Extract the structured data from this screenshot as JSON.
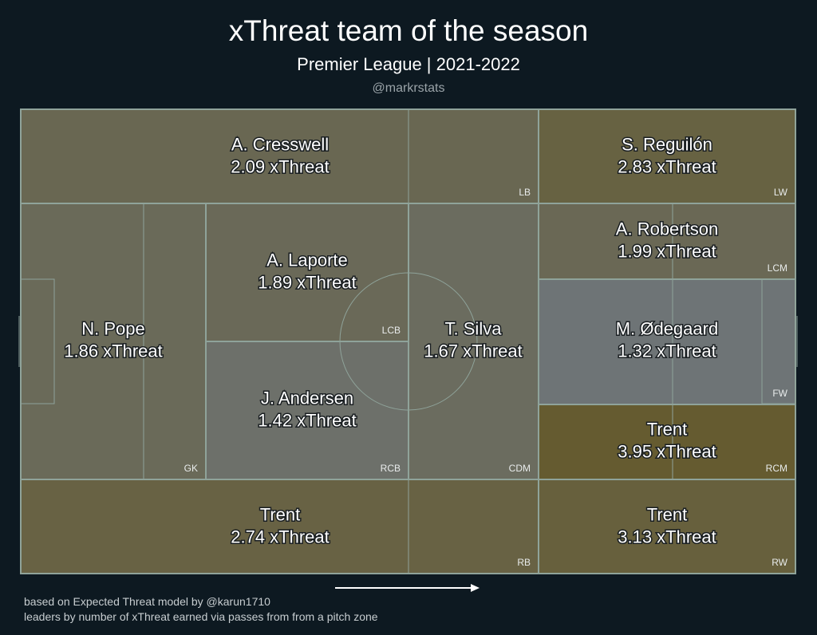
{
  "header": {
    "title": "xThreat team of the season",
    "subtitle": "Premier League | 2021-2022",
    "handle": "@markrstats"
  },
  "footer": {
    "line1": "based on Expected Threat model by @karun1710",
    "line2": "leaders by number of xThreat earned via passes from from a pitch zone"
  },
  "colors": {
    "background": "#0d1921",
    "pitch_lines": "#8fa39a",
    "value_low": "#6e7476",
    "value_high": "#655b30"
  },
  "chart_data": {
    "type": "heatmap",
    "title": "xThreat team of the season",
    "subtitle": "Premier League | 2021-2022",
    "value_unit": "xThreat",
    "direction_of_play": "left-to-right",
    "zones": [
      {
        "position": "LB",
        "player": "A. Cresswell",
        "value": 2.09
      },
      {
        "position": "LW",
        "player": "S. Reguilón",
        "value": 2.83
      },
      {
        "position": "GK",
        "player": "N. Pope",
        "value": 1.86
      },
      {
        "position": "LCB",
        "player": "A. Laporte",
        "value": 1.89
      },
      {
        "position": "RCB",
        "player": "J. Andersen",
        "value": 1.42
      },
      {
        "position": "CDM",
        "player": "T. Silva",
        "value": 1.67
      },
      {
        "position": "LCM",
        "player": "A. Robertson",
        "value": 1.99
      },
      {
        "position": "FW",
        "player": "M. Ødegaard",
        "value": 1.32
      },
      {
        "position": "RCM",
        "player": "Trent",
        "value": 3.95
      },
      {
        "position": "RB",
        "player": "Trent",
        "value": 2.74
      },
      {
        "position": "RW",
        "player": "Trent",
        "value": 3.13
      }
    ]
  }
}
